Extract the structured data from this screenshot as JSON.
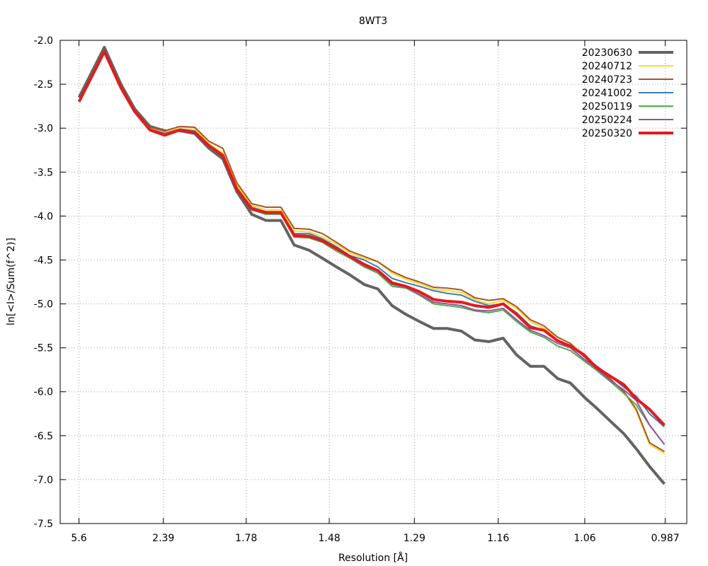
{
  "chart_data": {
    "type": "line",
    "title": "8WT3",
    "xlabel": "Resolution [Å]",
    "ylabel": "ln[<I>/Sum(f^2)]",
    "x_tick_labels": [
      "5.6",
      "2.39",
      "1.78",
      "1.48",
      "1.29",
      "1.16",
      "1.06",
      "0.987"
    ],
    "y_ticks": [
      -2.0,
      -2.5,
      -3.0,
      -3.5,
      -4.0,
      -4.5,
      -5.0,
      -5.5,
      -6.0,
      -6.5,
      -7.0,
      -7.5
    ],
    "y_tick_labels": [
      "-2.0",
      "-2.5",
      "-3.0",
      "-3.5",
      "-4.0",
      "-4.5",
      "-5.0",
      "-5.5",
      "-6.0",
      "-6.5",
      "-7.0",
      "-7.5"
    ],
    "ylim": [
      -7.5,
      -2.0
    ],
    "x_scale": "1/d^2",
    "xlim_inv_d2": [
      0,
      1.063
    ],
    "grid": true,
    "legend_position": "top-right",
    "series": [
      {
        "name": "20230630",
        "color": "#636363",
        "width": 4,
        "x_inv_d2": [
          0.0319,
          0.075,
          0.103,
          0.1264,
          0.1523,
          0.1774,
          0.2031,
          0.2282,
          0.2526,
          0.276,
          0.2996,
          0.325,
          0.3491,
          0.3744,
          0.397,
          0.4224,
          0.4449,
          0.4689,
          0.4917,
          0.516,
          0.539,
          0.5631,
          0.5866,
          0.6095,
          0.6336,
          0.6569,
          0.6807,
          0.7035,
          0.7272,
          0.7515,
          0.7742,
          0.7977,
          0.8207,
          0.844,
          0.8655,
          0.889,
          0.909,
          0.9327,
          0.9566,
          0.9774,
          0.9999,
          1.025
        ],
        "y": [
          -2.65,
          -2.08,
          -2.5,
          -2.78,
          -2.98,
          -3.03,
          -3.03,
          -3.06,
          -3.23,
          -3.35,
          -3.72,
          -3.98,
          -4.05,
          -4.05,
          -4.33,
          -4.39,
          -4.48,
          -4.58,
          -4.67,
          -4.78,
          -4.83,
          -5.02,
          -5.12,
          -5.2,
          -5.28,
          -5.28,
          -5.31,
          -5.41,
          -5.43,
          -5.39,
          -5.58,
          -5.71,
          -5.71,
          -5.85,
          -5.9,
          -6.06,
          -6.18,
          -6.33,
          -6.48,
          -6.65,
          -6.85,
          -7.05
        ]
      },
      {
        "name": "20240712",
        "color": "#ffd92f",
        "width": 2,
        "x_inv_d2": [
          0.0319,
          0.075,
          0.103,
          0.1264,
          0.1523,
          0.1774,
          0.2031,
          0.2282,
          0.2526,
          0.276,
          0.2996,
          0.325,
          0.3491,
          0.3744,
          0.397,
          0.4224,
          0.4449,
          0.4689,
          0.4917,
          0.516,
          0.539,
          0.5631,
          0.5866,
          0.6095,
          0.6336,
          0.6569,
          0.6807,
          0.7035,
          0.7272,
          0.7515,
          0.7742,
          0.7977,
          0.8207,
          0.844,
          0.8655,
          0.889,
          0.909,
          0.9327,
          0.9566,
          0.9774,
          0.9999,
          1.025
        ],
        "y": [
          -2.69,
          -2.12,
          -2.53,
          -2.8,
          -3.0,
          -3.05,
          -2.99,
          -3.0,
          -3.18,
          -3.28,
          -3.65,
          -3.88,
          -3.93,
          -3.93,
          -4.17,
          -4.18,
          -4.24,
          -4.32,
          -4.42,
          -4.48,
          -4.52,
          -4.65,
          -4.72,
          -4.77,
          -4.83,
          -4.85,
          -4.87,
          -4.95,
          -5.0,
          -4.96,
          -5.05,
          -5.2,
          -5.28,
          -5.38,
          -5.45,
          -5.58,
          -5.73,
          -5.85,
          -6.0,
          -6.22,
          -6.6,
          -6.7
        ]
      },
      {
        "name": "20240723",
        "color": "#a65628",
        "width": 2,
        "x_inv_d2": [
          0.0319,
          0.075,
          0.103,
          0.1264,
          0.1523,
          0.1774,
          0.2031,
          0.2282,
          0.2526,
          0.276,
          0.2996,
          0.325,
          0.3491,
          0.3744,
          0.397,
          0.4224,
          0.4449,
          0.4689,
          0.4917,
          0.516,
          0.539,
          0.5631,
          0.5866,
          0.6095,
          0.6336,
          0.6569,
          0.6807,
          0.7035,
          0.7272,
          0.7515,
          0.7742,
          0.7977,
          0.8207,
          0.844,
          0.8655,
          0.889,
          0.909,
          0.9327,
          0.9566,
          0.9774,
          0.9999,
          1.025
        ],
        "y": [
          -2.69,
          -2.12,
          -2.53,
          -2.8,
          -2.99,
          -3.03,
          -2.98,
          -2.99,
          -3.15,
          -3.23,
          -3.62,
          -3.86,
          -3.9,
          -3.9,
          -4.14,
          -4.15,
          -4.2,
          -4.3,
          -4.4,
          -4.46,
          -4.52,
          -4.63,
          -4.7,
          -4.75,
          -4.81,
          -4.82,
          -4.84,
          -4.93,
          -4.96,
          -4.94,
          -5.03,
          -5.18,
          -5.25,
          -5.38,
          -5.45,
          -5.6,
          -5.73,
          -5.85,
          -6.0,
          -6.2,
          -6.58,
          -6.68
        ]
      },
      {
        "name": "20241002",
        "color": "#377eb8",
        "width": 2,
        "x_inv_d2": [
          0.0319,
          0.075,
          0.103,
          0.1264,
          0.1523,
          0.1774,
          0.2031,
          0.2282,
          0.2526,
          0.276,
          0.2996,
          0.325,
          0.3491,
          0.3744,
          0.397,
          0.4224,
          0.4449,
          0.4689,
          0.4917,
          0.516,
          0.539,
          0.5631,
          0.5866,
          0.6095,
          0.6336,
          0.6569,
          0.6807,
          0.7035,
          0.7272,
          0.7515,
          0.7742,
          0.7977,
          0.8207,
          0.844,
          0.8655,
          0.889,
          0.909,
          0.9327,
          0.9566,
          0.9774,
          0.9999,
          1.025
        ],
        "y": [
          -2.69,
          -2.12,
          -2.53,
          -2.8,
          -3.01,
          -3.06,
          -3.01,
          -3.03,
          -3.19,
          -3.3,
          -3.68,
          -3.9,
          -3.95,
          -3.95,
          -4.2,
          -4.2,
          -4.26,
          -4.35,
          -4.45,
          -4.5,
          -4.58,
          -4.71,
          -4.76,
          -4.8,
          -4.85,
          -4.88,
          -4.9,
          -4.97,
          -5.02,
          -5.0,
          -5.1,
          -5.25,
          -5.3,
          -5.42,
          -5.47,
          -5.6,
          -5.7,
          -5.82,
          -5.95,
          -6.05,
          -6.25,
          -6.4
        ]
      },
      {
        "name": "20250119",
        "color": "#4daf4a",
        "width": 2,
        "x_inv_d2": [
          0.0319,
          0.075,
          0.103,
          0.1264,
          0.1523,
          0.1774,
          0.2031,
          0.2282,
          0.2526,
          0.276,
          0.2996,
          0.325,
          0.3491,
          0.3744,
          0.397,
          0.4224,
          0.4449,
          0.4689,
          0.4917,
          0.516,
          0.539,
          0.5631,
          0.5866,
          0.6095,
          0.6336,
          0.6569,
          0.6807,
          0.7035,
          0.7272,
          0.7515,
          0.7742,
          0.7977,
          0.8207,
          0.844,
          0.8655,
          0.889,
          0.909,
          0.9327,
          0.9566,
          0.9774,
          0.9999,
          1.025
        ],
        "y": [
          -2.69,
          -2.12,
          -2.53,
          -2.8,
          -3.01,
          -3.06,
          -3.02,
          -3.04,
          -3.2,
          -3.32,
          -3.7,
          -3.93,
          -3.98,
          -3.98,
          -4.24,
          -4.25,
          -4.3,
          -4.4,
          -4.48,
          -4.58,
          -4.65,
          -4.8,
          -4.82,
          -4.9,
          -5.0,
          -5.02,
          -5.04,
          -5.08,
          -5.1,
          -5.07,
          -5.2,
          -5.32,
          -5.38,
          -5.48,
          -5.53,
          -5.65,
          -5.75,
          -5.88,
          -6.02,
          -6.15,
          -6.38,
          -6.6
        ]
      },
      {
        "name": "20250224",
        "color": "#984ea3",
        "width": 2,
        "x_inv_d2": [
          0.0319,
          0.075,
          0.103,
          0.1264,
          0.1523,
          0.1774,
          0.2031,
          0.2282,
          0.2526,
          0.276,
          0.2996,
          0.325,
          0.3491,
          0.3744,
          0.397,
          0.4224,
          0.4449,
          0.4689,
          0.4917,
          0.516,
          0.539,
          0.5631,
          0.5866,
          0.6095,
          0.6336,
          0.6569,
          0.6807,
          0.7035,
          0.7272,
          0.7515,
          0.7742,
          0.7977,
          0.8207,
          0.844,
          0.8655,
          0.889,
          0.909,
          0.9327,
          0.9566,
          0.9774,
          0.9999,
          1.025
        ],
        "y": [
          -2.69,
          -2.12,
          -2.53,
          -2.8,
          -3.01,
          -3.06,
          -3.02,
          -3.04,
          -3.2,
          -3.32,
          -3.7,
          -3.92,
          -3.97,
          -3.97,
          -4.23,
          -4.24,
          -4.29,
          -4.38,
          -4.47,
          -4.57,
          -4.63,
          -4.78,
          -4.81,
          -4.89,
          -4.98,
          -5.0,
          -5.02,
          -5.07,
          -5.08,
          -5.05,
          -5.18,
          -5.3,
          -5.36,
          -5.45,
          -5.5,
          -5.63,
          -5.73,
          -5.87,
          -5.98,
          -6.1,
          -6.38,
          -6.6
        ]
      },
      {
        "name": "20250320",
        "color": "#e41a1c",
        "width": 4,
        "x_inv_d2": [
          0.0319,
          0.075,
          0.103,
          0.1264,
          0.1523,
          0.1774,
          0.2031,
          0.2282,
          0.2526,
          0.276,
          0.2996,
          0.325,
          0.3491,
          0.3744,
          0.397,
          0.4224,
          0.4449,
          0.4689,
          0.4917,
          0.516,
          0.539,
          0.5631,
          0.5866,
          0.6095,
          0.6336,
          0.6569,
          0.6807,
          0.7035,
          0.7272,
          0.7515,
          0.7742,
          0.7977,
          0.8207,
          0.844,
          0.8655,
          0.889,
          0.909,
          0.9327,
          0.9566,
          0.9774,
          0.9999,
          1.025
        ],
        "y": [
          -2.7,
          -2.13,
          -2.54,
          -2.81,
          -3.02,
          -3.08,
          -3.02,
          -3.05,
          -3.2,
          -3.31,
          -3.69,
          -3.92,
          -3.96,
          -3.96,
          -4.22,
          -4.23,
          -4.28,
          -4.37,
          -4.46,
          -4.55,
          -4.62,
          -4.76,
          -4.8,
          -4.86,
          -4.95,
          -4.97,
          -4.98,
          -5.02,
          -5.04,
          -5.0,
          -5.12,
          -5.27,
          -5.3,
          -5.42,
          -5.48,
          -5.58,
          -5.72,
          -5.82,
          -5.92,
          -6.08,
          -6.2,
          -6.38
        ]
      }
    ]
  }
}
